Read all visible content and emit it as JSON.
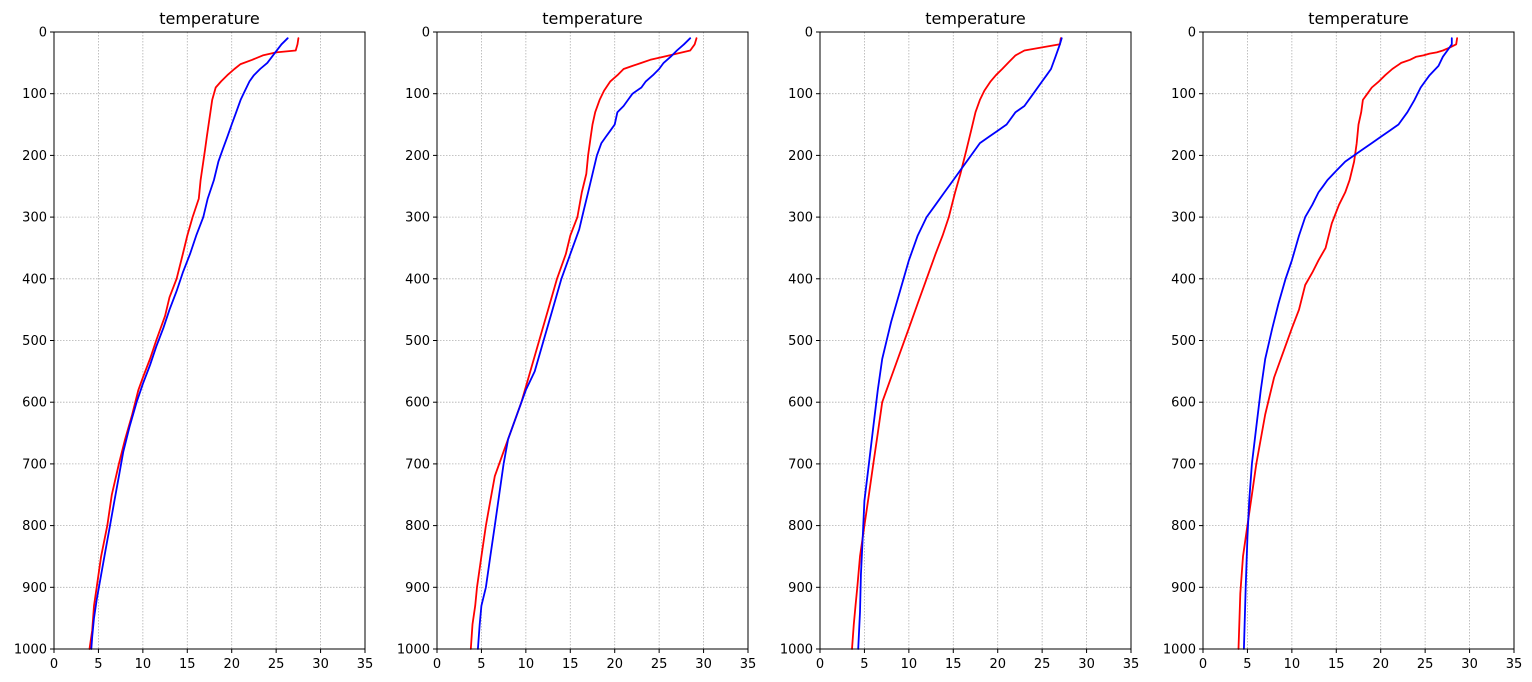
{
  "colors": {
    "series_red": "#ff0000",
    "series_blue": "#0000ff",
    "grid": "#b0b0b0"
  },
  "chart_data": [
    {
      "type": "line",
      "title": "temperature",
      "xlim": [
        0,
        35
      ],
      "ylim": [
        1000,
        0
      ],
      "y_inverted": true,
      "xticks": [
        0,
        5,
        10,
        15,
        20,
        25,
        30,
        35
      ],
      "yticks": [
        0,
        100,
        200,
        300,
        400,
        500,
        600,
        700,
        800,
        900,
        1000
      ],
      "grid": true,
      "series": [
        {
          "color": "#ff0000",
          "x": [
            27.5,
            27.4,
            27.2,
            25.0,
            23.5,
            22.3,
            21.0,
            20.3,
            19.5,
            18.8,
            18.2,
            17.8,
            17.6,
            17.4,
            17.2,
            17.0,
            16.8,
            16.5,
            16.3,
            15.6,
            15.0,
            14.5,
            13.8,
            13.0,
            12.5,
            11.5,
            10.8,
            10.0,
            9.5,
            8.8,
            8.0,
            7.3,
            6.5,
            6.0,
            5.3,
            4.8,
            4.5,
            4.3,
            4.0
          ],
          "y": [
            10,
            20,
            30,
            33,
            38,
            45,
            52,
            60,
            70,
            80,
            90,
            110,
            130,
            150,
            170,
            190,
            210,
            240,
            270,
            300,
            330,
            360,
            400,
            430,
            460,
            500,
            530,
            560,
            580,
            620,
            660,
            700,
            750,
            800,
            850,
            900,
            930,
            970,
            1000
          ]
        },
        {
          "color": "#0000ff",
          "x": [
            26.3,
            25.6,
            24.8,
            24.0,
            23.2,
            22.5,
            22.0,
            21.5,
            21.0,
            20.5,
            20.0,
            19.5,
            19.0,
            18.5,
            18.0,
            17.3,
            16.8,
            16.0,
            15.3,
            14.5,
            13.8,
            13.0,
            12.3,
            11.5,
            10.8,
            10.0,
            9.3,
            8.5,
            7.8,
            7.3,
            6.8,
            6.3,
            5.8,
            5.3,
            4.8,
            4.5,
            4.3,
            4.2
          ],
          "y": [
            10,
            20,
            35,
            50,
            60,
            70,
            80,
            95,
            110,
            130,
            150,
            170,
            190,
            210,
            240,
            270,
            300,
            330,
            360,
            390,
            420,
            450,
            480,
            510,
            540,
            570,
            600,
            640,
            680,
            720,
            760,
            800,
            840,
            880,
            920,
            950,
            980,
            1000
          ]
        }
      ]
    },
    {
      "type": "line",
      "title": "temperature",
      "xlim": [
        0,
        35
      ],
      "ylim": [
        1000,
        0
      ],
      "y_inverted": true,
      "xticks": [
        0,
        5,
        10,
        15,
        20,
        25,
        30,
        35
      ],
      "yticks": [
        0,
        100,
        200,
        300,
        400,
        500,
        600,
        700,
        800,
        900,
        1000
      ],
      "grid": true,
      "series": [
        {
          "color": "#ff0000",
          "x": [
            29.2,
            29.0,
            28.5,
            27.0,
            25.5,
            24.0,
            23.0,
            22.0,
            21.0,
            20.3,
            19.5,
            18.8,
            18.3,
            17.8,
            17.5,
            17.3,
            17.0,
            16.8,
            16.3,
            15.8,
            15.0,
            14.5,
            13.5,
            12.5,
            11.5,
            10.5,
            9.5,
            8.5,
            7.5,
            6.5,
            6.0,
            5.5,
            5.0,
            4.5,
            4.3,
            4.0,
            3.8
          ],
          "y": [
            10,
            20,
            30,
            35,
            40,
            45,
            50,
            55,
            60,
            70,
            80,
            95,
            110,
            130,
            150,
            170,
            200,
            230,
            260,
            300,
            330,
            360,
            400,
            450,
            500,
            550,
            600,
            640,
            680,
            720,
            760,
            800,
            850,
            900,
            930,
            960,
            1000
          ]
        },
        {
          "color": "#0000ff",
          "x": [
            28.5,
            27.8,
            27.0,
            26.3,
            25.5,
            25.0,
            24.3,
            23.5,
            23.0,
            22.0,
            21.5,
            21.0,
            20.3,
            20.0,
            19.5,
            19.0,
            18.5,
            18.0,
            17.5,
            17.0,
            16.5,
            16.0,
            15.0,
            14.0,
            13.0,
            12.0,
            11.0,
            10.0,
            9.0,
            8.0,
            7.5,
            7.0,
            6.5,
            6.0,
            5.5,
            5.0,
            4.8,
            4.6
          ],
          "y": [
            10,
            20,
            30,
            40,
            50,
            60,
            70,
            80,
            90,
            100,
            110,
            120,
            130,
            150,
            160,
            170,
            180,
            200,
            230,
            260,
            290,
            320,
            360,
            400,
            450,
            500,
            550,
            580,
            620,
            660,
            700,
            750,
            800,
            850,
            900,
            930,
            960,
            1000
          ]
        }
      ]
    },
    {
      "type": "line",
      "title": "temperature",
      "xlim": [
        0,
        35
      ],
      "ylim": [
        1000,
        0
      ],
      "y_inverted": true,
      "xticks": [
        0,
        5,
        10,
        15,
        20,
        25,
        30,
        35
      ],
      "yticks": [
        0,
        100,
        200,
        300,
        400,
        500,
        600,
        700,
        800,
        900,
        1000
      ],
      "grid": true,
      "series": [
        {
          "color": "#ff0000",
          "x": [
            27.1,
            27.0,
            25.0,
            23.0,
            22.0,
            21.3,
            20.5,
            19.8,
            19.2,
            18.5,
            18.0,
            17.5,
            17.0,
            16.5,
            15.8,
            15.2,
            14.5,
            13.8,
            13.0,
            12.0,
            11.0,
            10.0,
            9.0,
            8.0,
            7.0,
            6.5,
            6.0,
            5.5,
            5.0,
            4.5,
            4.2,
            4.0,
            3.8,
            3.6
          ],
          "y": [
            10,
            20,
            25,
            30,
            38,
            48,
            60,
            70,
            80,
            95,
            110,
            130,
            160,
            190,
            230,
            260,
            300,
            330,
            360,
            400,
            440,
            480,
            520,
            560,
            600,
            650,
            700,
            750,
            800,
            850,
            900,
            930,
            960,
            1000
          ]
        },
        {
          "color": "#0000ff",
          "x": [
            27.2,
            27.0,
            26.5,
            26.0,
            25.5,
            25.0,
            24.0,
            23.0,
            22.0,
            21.0,
            20.0,
            19.0,
            18.0,
            17.0,
            16.0,
            15.0,
            14.0,
            13.0,
            12.0,
            11.0,
            10.0,
            9.0,
            8.0,
            7.0,
            6.5,
            6.0,
            5.5,
            5.0,
            4.8,
            4.6,
            4.5,
            4.3
          ],
          "y": [
            10,
            20,
            40,
            60,
            70,
            80,
            100,
            120,
            130,
            150,
            160,
            170,
            180,
            200,
            220,
            240,
            260,
            280,
            300,
            330,
            370,
            420,
            470,
            530,
            580,
            640,
            700,
            760,
            820,
            880,
            940,
            1000
          ]
        }
      ]
    },
    {
      "type": "line",
      "title": "temperature",
      "xlim": [
        0,
        35
      ],
      "ylim": [
        1000,
        0
      ],
      "y_inverted": true,
      "xticks": [
        0,
        5,
        10,
        15,
        20,
        25,
        30,
        35
      ],
      "yticks": [
        0,
        100,
        200,
        300,
        400,
        500,
        600,
        700,
        800,
        900,
        1000
      ],
      "grid": true,
      "series": [
        {
          "color": "#ff0000",
          "x": [
            28.6,
            28.5,
            27.8,
            27.0,
            26.3,
            25.5,
            24.8,
            24.0,
            23.3,
            22.3,
            21.3,
            20.5,
            19.8,
            19.0,
            18.5,
            18.0,
            17.8,
            17.5,
            17.3,
            17.0,
            16.5,
            16.0,
            15.3,
            14.5,
            13.8,
            13.0,
            12.3,
            11.5,
            10.8,
            10.0,
            9.0,
            8.0,
            7.0,
            6.0,
            5.5,
            5.0,
            4.5,
            4.2,
            4.0
          ],
          "y": [
            10,
            20,
            25,
            30,
            33,
            35,
            38,
            40,
            45,
            50,
            60,
            70,
            80,
            90,
            100,
            110,
            130,
            150,
            180,
            210,
            240,
            260,
            280,
            310,
            350,
            370,
            390,
            410,
            450,
            480,
            520,
            560,
            620,
            700,
            750,
            800,
            850,
            910,
            1000
          ]
        },
        {
          "color": "#0000ff",
          "x": [
            28.0,
            28.0,
            27.5,
            27.0,
            26.5,
            25.5,
            25.0,
            24.5,
            23.8,
            23.0,
            22.0,
            21.0,
            20.0,
            19.0,
            18.0,
            17.0,
            16.0,
            15.0,
            14.0,
            13.5,
            13.0,
            12.3,
            11.5,
            10.8,
            10.0,
            9.3,
            8.5,
            7.8,
            7.0,
            6.5,
            6.0,
            5.5,
            5.2,
            5.0,
            4.8,
            4.6
          ],
          "y": [
            10,
            20,
            30,
            40,
            55,
            70,
            80,
            90,
            110,
            130,
            150,
            160,
            170,
            180,
            190,
            200,
            210,
            225,
            240,
            250,
            260,
            280,
            300,
            330,
            370,
            400,
            440,
            480,
            530,
            580,
            640,
            700,
            760,
            820,
            900,
            1000
          ]
        }
      ]
    }
  ]
}
